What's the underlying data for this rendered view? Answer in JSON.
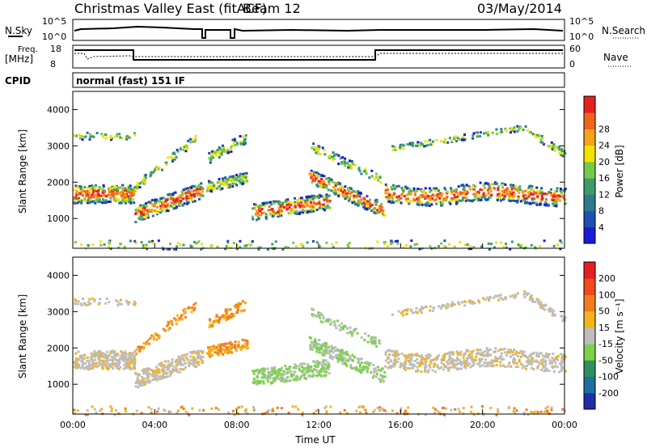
{
  "header": {
    "title": "Christmas Valley East (fitACF)",
    "beam": "Beam 12",
    "date": "03/May/2014"
  },
  "panels": {
    "nsky": {
      "left_label": "N.Sky",
      "left_ticks": [
        "10^5",
        "10^0"
      ],
      "right_ticks": [
        "10^5",
        "10^0"
      ],
      "right_label": "N.Search"
    },
    "freq": {
      "left_label_1": "Freq.",
      "left_label_2": "[MHz]",
      "left_ticks": [
        "18",
        "8"
      ],
      "right_ticks": [
        "60",
        "0"
      ],
      "right_label": "Nave"
    },
    "cpid": {
      "label": "CPID",
      "text": "normal (fast) 151 IF"
    }
  },
  "chart_data": [
    {
      "type": "heatmap",
      "name": "power",
      "ylabel": "Slant Range [km]",
      "xlabel": "",
      "ylim": [
        180,
        4500
      ],
      "yticks": [
        "1000",
        "2000",
        "3000",
        "4000"
      ],
      "xticks": [
        "00:00",
        "04:00",
        "08:00",
        "12:00",
        "16:00",
        "20:00",
        "00:00"
      ],
      "colorbar": {
        "label": "Power [dB]",
        "ticks": [
          "4",
          "8",
          "12",
          "16",
          "20",
          "24",
          "28"
        ],
        "colors": [
          "#1a1ad9",
          "#1f4fb0",
          "#2d7a8f",
          "#3c9c6a",
          "#77c94a",
          "#f1e200",
          "#f6a21c",
          "#f2641c",
          "#e62020"
        ]
      }
    },
    {
      "type": "heatmap",
      "name": "velocity",
      "ylabel": "Slant Range [km]",
      "xlabel": "Time UT",
      "ylim": [
        180,
        4500
      ],
      "yticks": [
        "1000",
        "2000",
        "3000",
        "4000"
      ],
      "xticks": [
        "00:00",
        "04:00",
        "08:00",
        "12:00",
        "16:00",
        "20:00",
        "00:00"
      ],
      "colorbar": {
        "label": "Velocity [m s⁻¹]",
        "ticks": [
          "200",
          "100",
          "50",
          "15",
          "-15",
          "-50",
          "-100",
          "-200"
        ],
        "colors": [
          "#1f2fa8",
          "#1f6f9f",
          "#2f8f5f",
          "#7bd34a",
          "#bdbdbd",
          "#f2b31c",
          "#f27d1c",
          "#f24a1c",
          "#e62020"
        ]
      }
    }
  ]
}
